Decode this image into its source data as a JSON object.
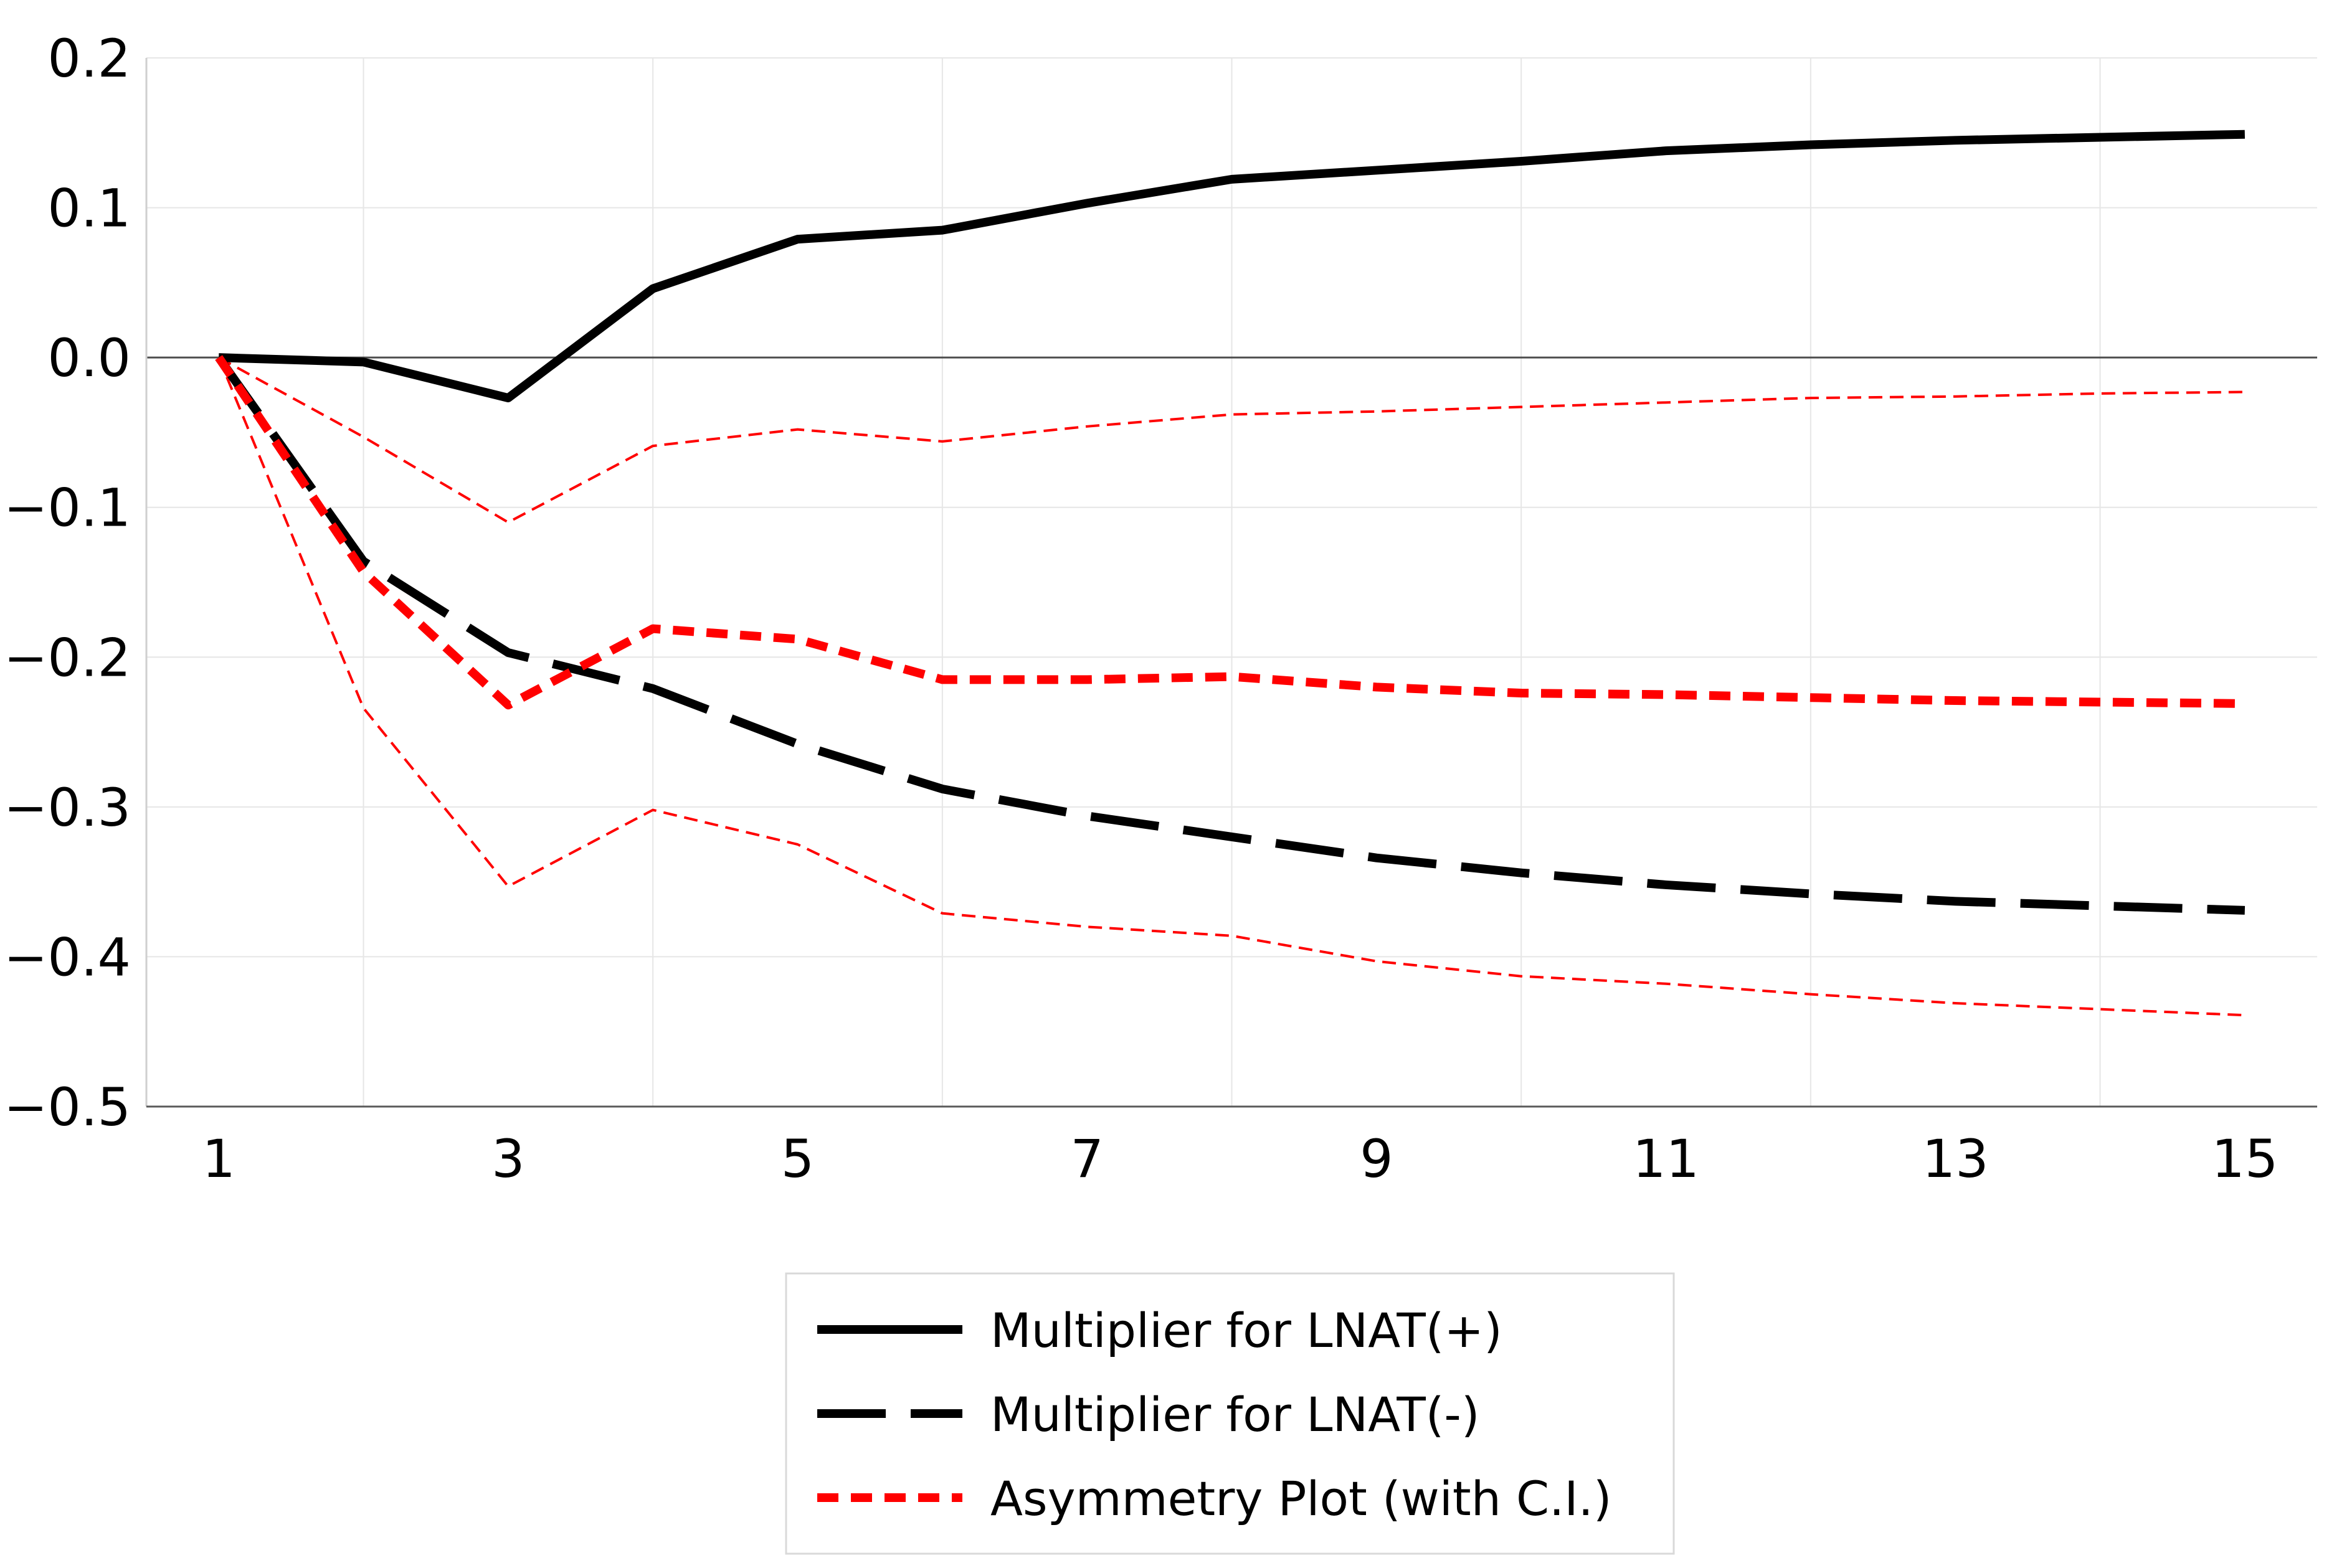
{
  "chart_data": {
    "type": "line",
    "title": "",
    "xlabel": "",
    "ylabel": "",
    "x": [
      1,
      2,
      3,
      4,
      5,
      6,
      7,
      8,
      9,
      10,
      11,
      12,
      13,
      14,
      15
    ],
    "x_tick_labels": [
      "1",
      "3",
      "5",
      "7",
      "9",
      "11",
      "13",
      "15"
    ],
    "x_tick_values": [
      1,
      3,
      5,
      7,
      9,
      11,
      13,
      15
    ],
    "xlim": [
      0.5,
      15.5
    ],
    "ylim": [
      -0.5,
      0.2
    ],
    "y_tick_values": [
      0.2,
      0.1,
      0.0,
      -0.1,
      -0.2,
      -0.3,
      -0.4,
      -0.5
    ],
    "y_tick_labels": [
      "0.2",
      "0.1",
      "0.0",
      "−0.1",
      "−0.2",
      "−0.3",
      "−0.4",
      "−0.5"
    ],
    "grid": true,
    "legend_position": "bottom-center",
    "series": [
      {
        "name": "Multiplier for LNAT(+)",
        "key": "pos",
        "color": "#000000",
        "style": "solid",
        "in_legend": true,
        "values": [
          0.0,
          -0.003,
          -0.027,
          0.046,
          0.079,
          0.085,
          0.103,
          0.119,
          0.125,
          0.131,
          0.138,
          0.142,
          0.145,
          0.147,
          0.149
        ]
      },
      {
        "name": "Multiplier for LNAT(-)",
        "key": "neg",
        "color": "#000000",
        "style": "long-dash",
        "in_legend": true,
        "values": [
          0.0,
          -0.136,
          -0.197,
          -0.221,
          -0.258,
          -0.288,
          -0.306,
          -0.32,
          -0.334,
          -0.344,
          -0.352,
          -0.358,
          -0.363,
          -0.366,
          -0.369
        ]
      },
      {
        "name": "Asymmetry Plot (with C.I.)",
        "key": "asym",
        "color": "#ff0000",
        "style": "short-dash",
        "in_legend": true,
        "values": [
          0.0,
          -0.143,
          -0.232,
          -0.181,
          -0.188,
          -0.215,
          -0.215,
          -0.213,
          -0.22,
          -0.224,
          -0.225,
          -0.227,
          -0.229,
          -0.23,
          -0.231
        ]
      },
      {
        "name": "Upper C.I.",
        "key": "ci_upper",
        "color": "#ff0000",
        "style": "thin-dash",
        "in_legend": false,
        "values": [
          0.0,
          -0.053,
          -0.11,
          -0.059,
          -0.048,
          -0.056,
          -0.046,
          -0.038,
          -0.036,
          -0.033,
          -0.03,
          -0.027,
          -0.026,
          -0.024,
          -0.023
        ]
      },
      {
        "name": "Lower C.I.",
        "key": "ci_lower",
        "color": "#ff0000",
        "style": "thin-dash",
        "in_legend": false,
        "values": [
          0.0,
          -0.234,
          -0.353,
          -0.302,
          -0.325,
          -0.371,
          -0.38,
          -0.386,
          -0.403,
          -0.413,
          -0.418,
          -0.425,
          -0.431,
          -0.435,
          -0.439
        ]
      }
    ]
  }
}
